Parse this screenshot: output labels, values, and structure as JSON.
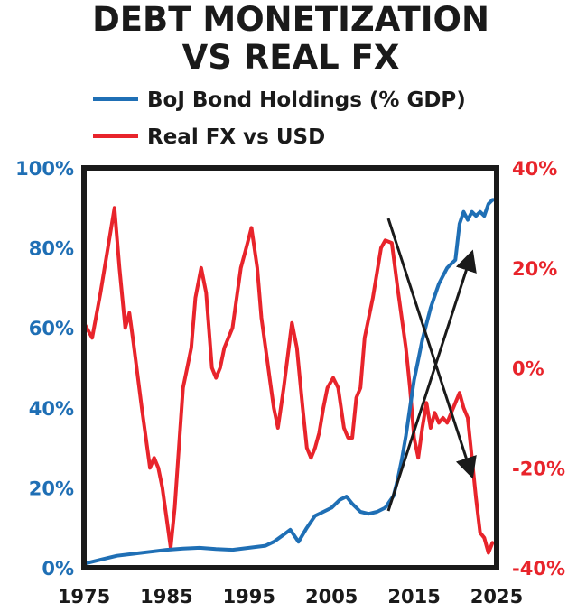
{
  "chart_data": {
    "type": "line",
    "title_lines": [
      "DEBT MONETIZATION",
      "VS REAL FX"
    ],
    "x_ticks": [
      "1975",
      "1985",
      "1995",
      "2005",
      "2015",
      "2025"
    ],
    "xlim": [
      1975,
      2025
    ],
    "y_left": {
      "ticks": [
        "0%",
        "20%",
        "40%",
        "60%",
        "80%",
        "100%"
      ],
      "ylim": [
        0,
        100
      ],
      "color": "#1f6fb5"
    },
    "y_right": {
      "ticks": [
        "-40%",
        "-20%",
        "0%",
        "20%",
        "40%"
      ],
      "ylim": [
        -40,
        40
      ],
      "color": "#e8242b"
    },
    "legend": {
      "placement": "top"
    },
    "series": [
      {
        "name": "BoJ Bond Holdings (% GDP)",
        "axis": "left",
        "color": "#1f6fb5",
        "points": [
          [
            1975,
            1
          ],
          [
            1977,
            2
          ],
          [
            1979,
            3
          ],
          [
            1981,
            3.5
          ],
          [
            1983,
            4
          ],
          [
            1985,
            4.5
          ],
          [
            1987,
            4.8
          ],
          [
            1989,
            5
          ],
          [
            1991,
            4.7
          ],
          [
            1993,
            4.5
          ],
          [
            1995,
            5
          ],
          [
            1997,
            5.5
          ],
          [
            1998,
            6.5
          ],
          [
            1999,
            8
          ],
          [
            2000,
            9.5
          ],
          [
            2001,
            6.5
          ],
          [
            2002,
            10
          ],
          [
            2003,
            13
          ],
          [
            2004,
            14
          ],
          [
            2005,
            15
          ],
          [
            2006,
            17
          ],
          [
            2006.8,
            17.8
          ],
          [
            2007.5,
            16
          ],
          [
            2008.5,
            14
          ],
          [
            2009.5,
            13.5
          ],
          [
            2010.5,
            14
          ],
          [
            2011.5,
            15
          ],
          [
            2012.5,
            18
          ],
          [
            2013,
            22
          ],
          [
            2013.5,
            27
          ],
          [
            2014,
            33
          ],
          [
            2014.5,
            40
          ],
          [
            2015,
            47
          ],
          [
            2015.5,
            52
          ],
          [
            2016,
            57
          ],
          [
            2016.5,
            61
          ],
          [
            2017,
            65
          ],
          [
            2017.5,
            68
          ],
          [
            2018,
            71
          ],
          [
            2018.5,
            73
          ],
          [
            2019,
            75
          ],
          [
            2019.5,
            76
          ],
          [
            2020,
            77
          ],
          [
            2020.5,
            86
          ],
          [
            2021,
            89
          ],
          [
            2021.5,
            87
          ],
          [
            2022,
            89
          ],
          [
            2022.5,
            88
          ],
          [
            2023,
            89
          ],
          [
            2023.5,
            88
          ],
          [
            2024,
            91
          ],
          [
            2024.5,
            92
          ],
          [
            2025,
            92
          ]
        ]
      },
      {
        "name": "Real FX vs USD",
        "axis": "right",
        "color": "#e8242b",
        "points": [
          [
            1975,
            9
          ],
          [
            1976,
            6
          ],
          [
            1977,
            15
          ],
          [
            1978,
            25
          ],
          [
            1978.7,
            32
          ],
          [
            1979.3,
            20
          ],
          [
            1980,
            8
          ],
          [
            1980.5,
            11
          ],
          [
            1981,
            5
          ],
          [
            1982,
            -8
          ],
          [
            1983,
            -20
          ],
          [
            1983.5,
            -18
          ],
          [
            1984,
            -20
          ],
          [
            1984.5,
            -24
          ],
          [
            1985.5,
            -36
          ],
          [
            1986,
            -28
          ],
          [
            1986.5,
            -16
          ],
          [
            1987,
            -4
          ],
          [
            1987.5,
            0
          ],
          [
            1988,
            4
          ],
          [
            1988.5,
            14
          ],
          [
            1989.2,
            20
          ],
          [
            1989.8,
            15
          ],
          [
            1990.5,
            0
          ],
          [
            1991,
            -2
          ],
          [
            1991.5,
            0
          ],
          [
            1992,
            4
          ],
          [
            1993,
            8
          ],
          [
            1994,
            20
          ],
          [
            1994.5,
            23
          ],
          [
            1995.3,
            28
          ],
          [
            1996,
            20
          ],
          [
            1996.5,
            10
          ],
          [
            1997,
            4
          ],
          [
            1997.5,
            -2
          ],
          [
            1998,
            -8
          ],
          [
            1998.5,
            -12
          ],
          [
            1999.2,
            -4
          ],
          [
            2000.2,
            9
          ],
          [
            2000.8,
            4
          ],
          [
            2001.5,
            -8
          ],
          [
            2002,
            -16
          ],
          [
            2002.5,
            -18
          ],
          [
            2003,
            -16
          ],
          [
            2003.5,
            -13
          ],
          [
            2004,
            -8
          ],
          [
            2004.5,
            -4
          ],
          [
            2005.2,
            -2
          ],
          [
            2005.8,
            -4
          ],
          [
            2006.5,
            -12
          ],
          [
            2007,
            -14
          ],
          [
            2007.5,
            -14
          ],
          [
            2008,
            -6
          ],
          [
            2008.5,
            -4
          ],
          [
            2009,
            6
          ],
          [
            2010,
            14
          ],
          [
            2011,
            24
          ],
          [
            2011.5,
            25.5
          ],
          [
            2012.3,
            25
          ],
          [
            2013,
            16
          ],
          [
            2014,
            4
          ],
          [
            2014.5,
            -4
          ],
          [
            2015,
            -14
          ],
          [
            2015.5,
            -18
          ],
          [
            2016,
            -12
          ],
          [
            2016.5,
            -7
          ],
          [
            2017,
            -12
          ],
          [
            2017.5,
            -9
          ],
          [
            2018,
            -11
          ],
          [
            2018.5,
            -10
          ],
          [
            2019,
            -11
          ],
          [
            2019.5,
            -9
          ],
          [
            2020,
            -7
          ],
          [
            2020.5,
            -5
          ],
          [
            2021,
            -8
          ],
          [
            2021.5,
            -10
          ],
          [
            2022,
            -18
          ],
          [
            2022.5,
            -26
          ],
          [
            2023,
            -33
          ],
          [
            2023.5,
            -34
          ],
          [
            2024,
            -37
          ],
          [
            2024.5,
            -35
          ]
        ]
      }
    ],
    "annotations": [
      "arrow-down-right",
      "arrow-up-right"
    ],
    "grid": false
  }
}
